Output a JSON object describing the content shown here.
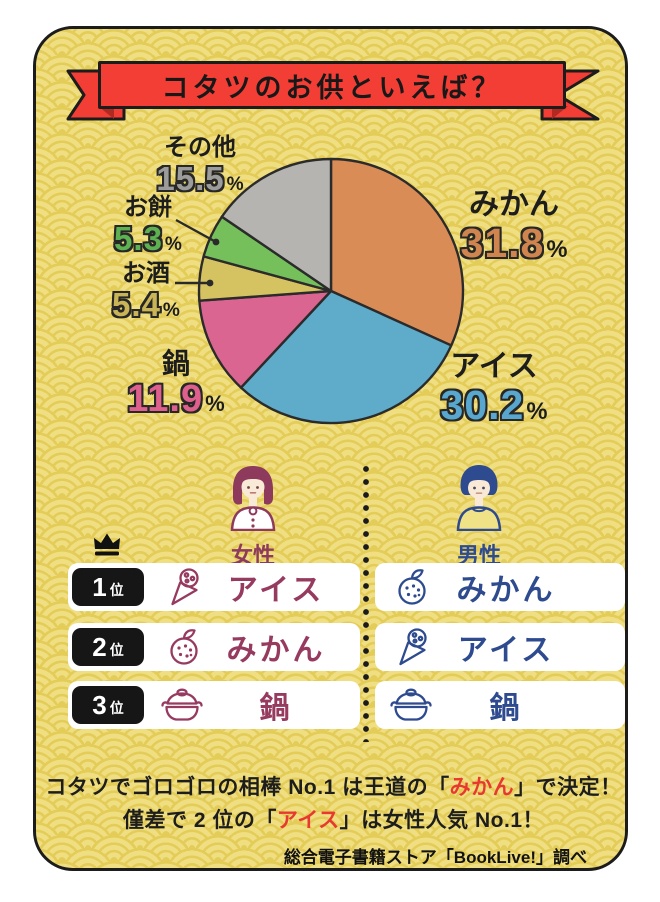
{
  "banner": {
    "title": "コタツのお供といえば？"
  },
  "chart_data": {
    "type": "pie",
    "title": "コタツのお供といえば？",
    "start_angle_deg": 0,
    "direction": "clockwise",
    "unit": "%",
    "segments": [
      {
        "label": "みかん",
        "value": 31.8,
        "color": "#d98c55",
        "label_color": "#d0854f"
      },
      {
        "label": "アイス",
        "value": 30.2,
        "color": "#5fabca",
        "label_color": "#57a7cf"
      },
      {
        "label": "鍋",
        "value": 11.9,
        "color": "#da6590",
        "label_color": "#df608d"
      },
      {
        "label": "お酒",
        "value": 5.4,
        "color": "#d5c260",
        "label_color": "#c9b456"
      },
      {
        "label": "お餅",
        "value": 5.3,
        "color": "#76c05c",
        "label_color": "#5eb150"
      },
      {
        "label": "その他",
        "value": 15.5,
        "color": "#b5b4b0",
        "label_color": "#9c9c9a"
      }
    ]
  },
  "genders": {
    "female": {
      "label": "女性",
      "icon": "female-icon",
      "accent": "#8d3a5c"
    },
    "male": {
      "label": "男性",
      "icon": "male-icon",
      "accent": "#2d4b8e"
    }
  },
  "ranking": {
    "crown_icon": "crown-icon",
    "rows": [
      {
        "rank": "1",
        "suffix": "位",
        "female": {
          "icon": "icecream-icon",
          "label": "アイス"
        },
        "male": {
          "icon": "mikan-icon",
          "label": "みかん"
        }
      },
      {
        "rank": "2",
        "suffix": "位",
        "female": {
          "icon": "mikan-icon",
          "label": "みかん"
        },
        "male": {
          "icon": "icecream-icon",
          "label": "アイス"
        }
      },
      {
        "rank": "3",
        "suffix": "位",
        "female": {
          "icon": "nabe-icon",
          "label": "鍋"
        },
        "male": {
          "icon": "nabe-icon",
          "label": "鍋"
        }
      }
    ]
  },
  "caption": {
    "line1": {
      "pre": "コタツでゴロゴロの相棒 No.1 は王道の「",
      "highlight": "みかん",
      "post": "」で決定！"
    },
    "line2": {
      "pre": "僅差で 2 位の「",
      "highlight": "アイス",
      "post": "」は女性人気 No.1！"
    },
    "highlight_color": "#e8382f"
  },
  "source": "総合電子書籍ストア「BookLive!」調べ",
  "colors": {
    "pattern_base": "#e4cc58",
    "pattern_arc": "#efdf82",
    "banner_red": "#f23e35",
    "outline": "#1c1c1c",
    "badge_bg": "#161616",
    "row_bg": "#ffffff",
    "female_accent": "#8d3a5c",
    "male_accent": "#2d4b8e",
    "caption_highlight": "#e8382f"
  }
}
